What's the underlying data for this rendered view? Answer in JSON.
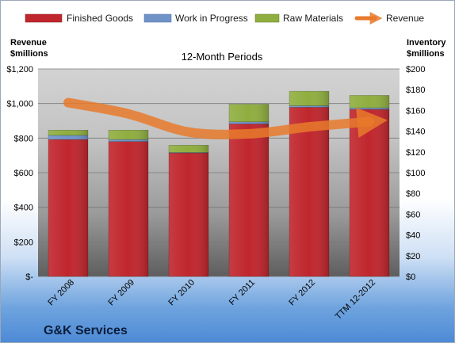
{
  "chart_data": {
    "type": "bar",
    "subtitle": "12-Month Periods",
    "company": "G&K Services",
    "left_axis_title": [
      "Revenue",
      "$millions"
    ],
    "right_axis_title": [
      "Inventory",
      "$millions"
    ],
    "left_ticks": [
      "$-",
      "$200",
      "$400",
      "$600",
      "$800",
      "$1,000",
      "$1,200"
    ],
    "right_ticks": [
      "$0",
      "$20",
      "$40",
      "$60",
      "$80",
      "$100",
      "$120",
      "$140",
      "$160",
      "$180",
      "$200"
    ],
    "left_range": [
      0,
      1200
    ],
    "right_range": [
      0,
      200
    ],
    "categories": [
      "FY 2008",
      "FY 2009",
      "FY 2010",
      "FY 2011",
      "FY 2012",
      "TTM 12-2012"
    ],
    "series": [
      {
        "name": "Finished Goods",
        "color": "#c0262d",
        "axis": "right",
        "values": [
          132,
          130,
          119,
          147,
          163,
          161
        ]
      },
      {
        "name": "Work in Progress",
        "color": "#6f93c9",
        "axis": "right",
        "values": [
          4,
          2,
          0.5,
          2,
          1.5,
          1.5
        ]
      },
      {
        "name": "Raw Materials",
        "color": "#8fae3f",
        "axis": "right",
        "values": [
          5,
          9,
          7,
          17,
          14,
          12
        ]
      }
    ],
    "line_series": {
      "name": "Revenue",
      "color": "#e87a2c",
      "axis": "left",
      "values": [
        1005,
        940,
        835,
        825,
        865,
        895
      ]
    },
    "legend_position": "top",
    "grid": true
  }
}
